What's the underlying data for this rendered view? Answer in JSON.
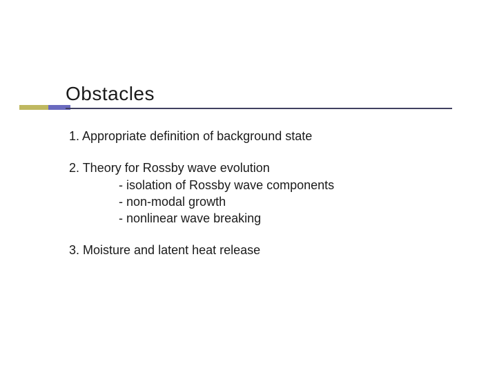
{
  "slide": {
    "title": "Obstacles",
    "title_fontsize": 28,
    "title_color": "#1a1a1a",
    "underline_color": "#404060",
    "accent_colors": {
      "left": "#bfb860",
      "right": "#6a6abf"
    },
    "body_fontsize": 18,
    "body_color": "#1a1a1a",
    "background_color": "#ffffff",
    "items": [
      {
        "text": "1. Appropriate definition of background state",
        "subitems": []
      },
      {
        "text": "2. Theory for Rossby wave evolution",
        "subitems": [
          "- isolation of Rossby wave components",
          "- non-modal growth",
          "- nonlinear wave breaking"
        ]
      },
      {
        "text": "3. Moisture and latent heat release",
        "subitems": []
      }
    ]
  }
}
